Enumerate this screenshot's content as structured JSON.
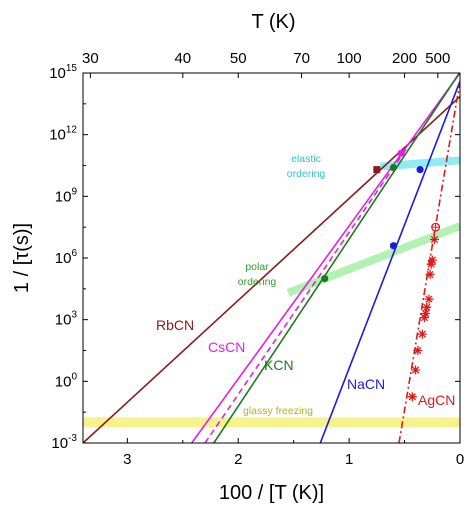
{
  "chart_data": {
    "type": "line",
    "xlabel": "100 / [T (K)]",
    "ylabel": "1 / [τ(s)]",
    "top_axis_label": "T (K)",
    "xlim": [
      3.4,
      0
    ],
    "ylim_log10": [
      -3,
      15
    ],
    "y_scale": "log",
    "x_ticks": [
      "3",
      "2",
      "1",
      "0"
    ],
    "x_tick_values": [
      3,
      2,
      1,
      0
    ],
    "top_ticks": [
      {
        "label": "30",
        "x": 3.3333
      },
      {
        "label": "40",
        "x": 2.5
      },
      {
        "label": "50",
        "x": 2.0
      },
      {
        "label": "70",
        "x": 1.4286
      },
      {
        "label": "100",
        "x": 1.0
      },
      {
        "label": "200",
        "x": 0.5
      },
      {
        "label": "500",
        "x": 0.2
      }
    ],
    "y_ticks": [
      {
        "base": "10",
        "exp": "-3",
        "value": -3
      },
      {
        "base": "10",
        "exp": "0",
        "value": 0
      },
      {
        "base": "10",
        "exp": "3",
        "value": 3
      },
      {
        "base": "10",
        "exp": "6",
        "value": 6
      },
      {
        "base": "10",
        "exp": "9",
        "value": 9
      },
      {
        "base": "10",
        "exp": "12",
        "value": 12
      },
      {
        "base": "10",
        "exp": "15",
        "value": 15
      }
    ],
    "series": [
      {
        "name": "RbCN",
        "color": "#8b1a1a",
        "style": "solid",
        "points": [
          [
            3.4,
            -3.0
          ],
          [
            0,
            13.85
          ]
        ],
        "markers": [
          [
            0.75,
            10.3
          ]
        ],
        "marker": "square"
      },
      {
        "name": "CsCN",
        "color": "#e61ee6",
        "style": "solid",
        "points": [
          [
            2.42,
            -3.0
          ],
          [
            0,
            15.0
          ]
        ],
        "markers": [
          [
            0.53,
            11.1
          ]
        ],
        "marker": "circle"
      },
      {
        "name": "",
        "color": "#e61ee6",
        "style": "dashed",
        "points": [
          [
            2.3,
            -3.0
          ],
          [
            0.48,
            11.35
          ]
        ],
        "markers": [],
        "marker": "none"
      },
      {
        "name": "KCN",
        "color": "#1e7a1e",
        "style": "solid",
        "points": [
          [
            2.22,
            -3.0
          ],
          [
            0,
            15.05
          ]
        ],
        "markers": [
          [
            1.22,
            5.0
          ],
          [
            0.6,
            10.4
          ]
        ],
        "marker": "circle"
      },
      {
        "name": "NaCN",
        "color": "#1a1ae0",
        "style": "solid",
        "points": [
          [
            1.26,
            -3.0
          ],
          [
            0,
            14.6
          ]
        ],
        "markers": [
          [
            0.6,
            6.6
          ],
          [
            0.36,
            10.3
          ]
        ],
        "marker": "circle"
      },
      {
        "name": "AgCN",
        "color": "#e01a1a",
        "style": "dashdot",
        "points": [
          [
            0.55,
            -3.0
          ],
          [
            0,
            14.6
          ]
        ],
        "markers": [
          [
            0.43,
            -0.75
          ],
          [
            0.4,
            0.55
          ],
          [
            0.38,
            1.5
          ],
          [
            0.34,
            2.3
          ],
          [
            0.32,
            3.1
          ],
          [
            0.31,
            3.3
          ],
          [
            0.3,
            3.6
          ],
          [
            0.28,
            4.0
          ],
          [
            0.27,
            5.2
          ],
          [
            0.26,
            5.7
          ],
          [
            0.25,
            5.9
          ],
          [
            0.23,
            6.9
          ]
        ],
        "marker": "star",
        "open_markers": [
          [
            0.22,
            7.5
          ]
        ]
      }
    ],
    "bands": [
      {
        "label": "elastic ordering",
        "color": "#7ee8f0",
        "points": [
          [
            0.72,
            10.45
          ],
          [
            0,
            10.75
          ]
        ]
      },
      {
        "label": "polar ordering",
        "color": "#a6eea6",
        "points": [
          [
            1.55,
            4.3
          ],
          [
            0,
            7.55
          ]
        ]
      },
      {
        "label": "glassy freezing",
        "color": "#f6f07a",
        "points": [
          [
            3.4,
            -2.0
          ],
          [
            0,
            -2.0
          ]
        ]
      }
    ],
    "annotations": [
      {
        "text": "elastic",
        "color": "#2fbfd0"
      },
      {
        "text": "ordering",
        "color": "#2fbfd0"
      },
      {
        "text": "polar",
        "color": "#2e9e2e"
      },
      {
        "text": "ordering",
        "color": "#2e9e2e"
      },
      {
        "text": "glassy freezing",
        "color": "#b8b020"
      }
    ]
  }
}
